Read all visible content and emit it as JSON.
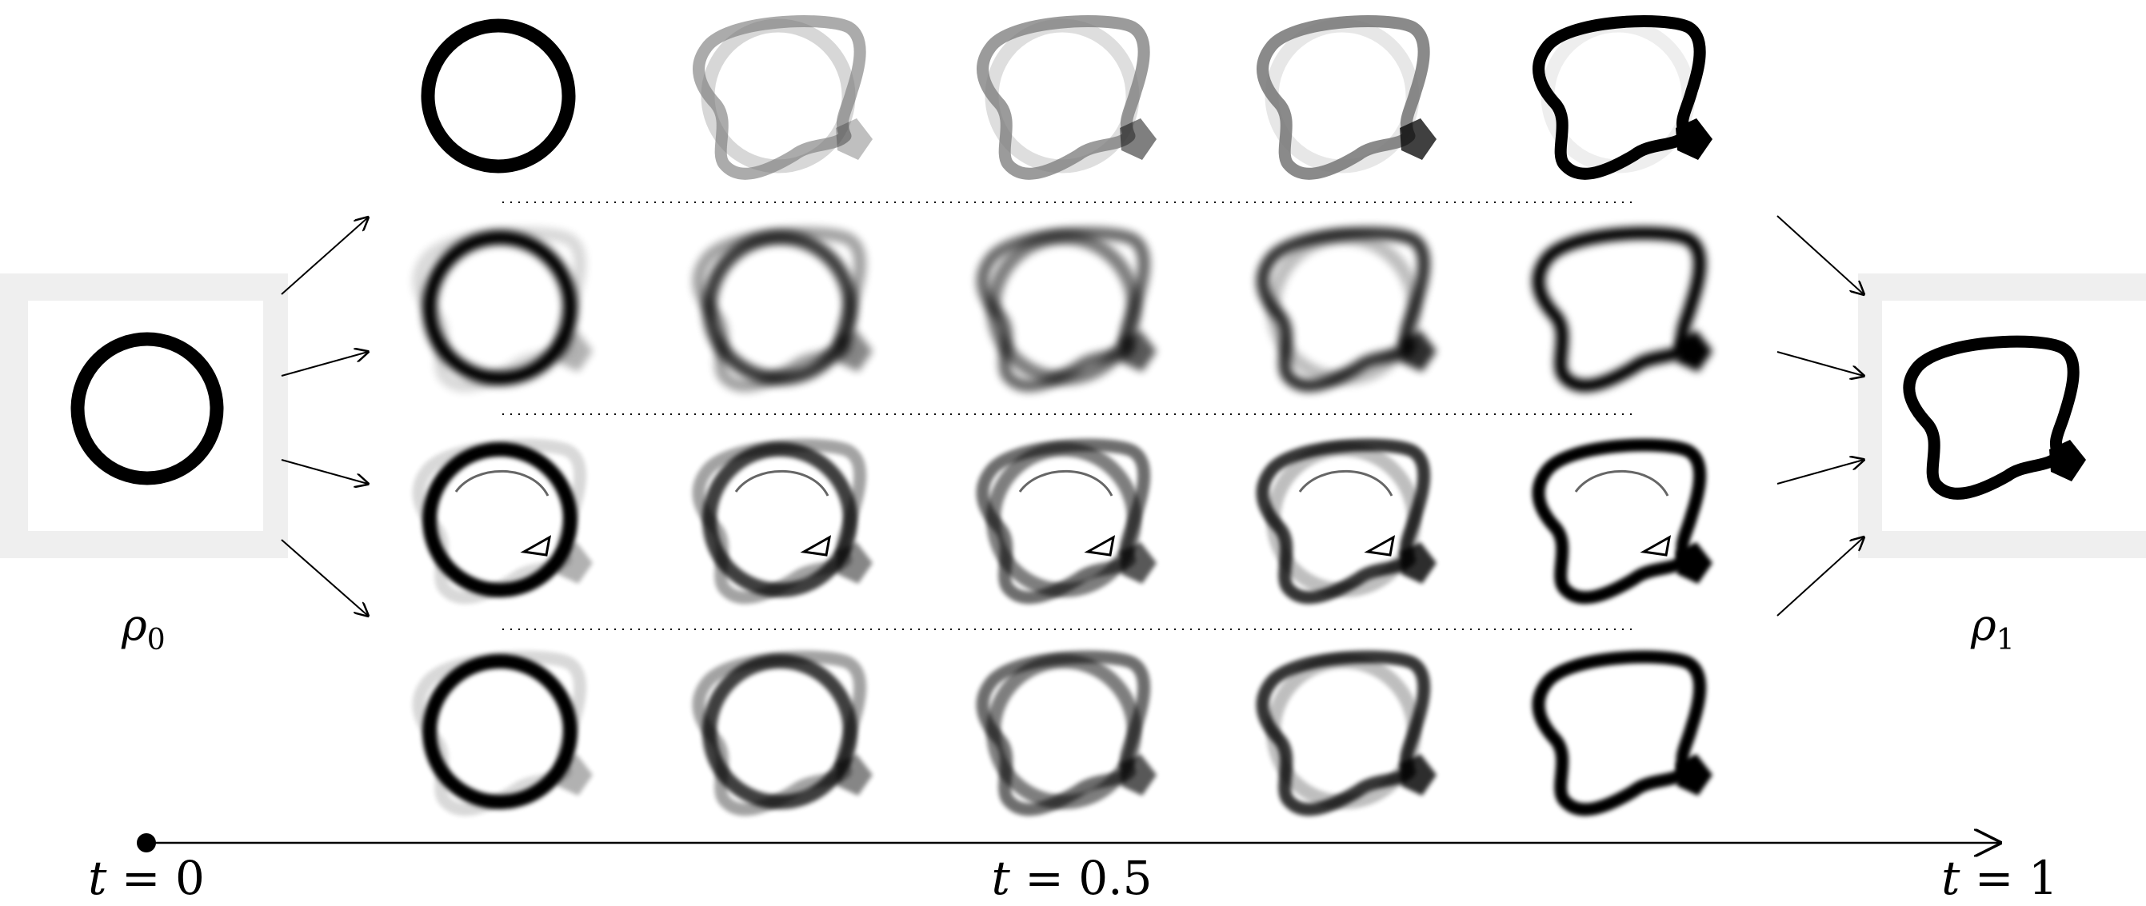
{
  "figure": {
    "left_label": {
      "symbol": "ρ",
      "subscript": "0"
    },
    "right_label": {
      "symbol": "ρ",
      "subscript": "1"
    },
    "time_axis": {
      "ticks": [
        {
          "var": "t",
          "eq": " = ",
          "value": "0"
        },
        {
          "var": "t",
          "eq": " = ",
          "value": "0.5"
        },
        {
          "var": "t",
          "eq": " = ",
          "value": "1"
        }
      ]
    },
    "rows": 4,
    "columns": 5,
    "colors": {
      "ink": "#000000",
      "frame": "#efefef",
      "ghost": "#cfcfcf",
      "mid": "#7a7a7a"
    },
    "icons": [
      "source-ring-icon",
      "target-shape-icon",
      "arrow-icon"
    ]
  }
}
